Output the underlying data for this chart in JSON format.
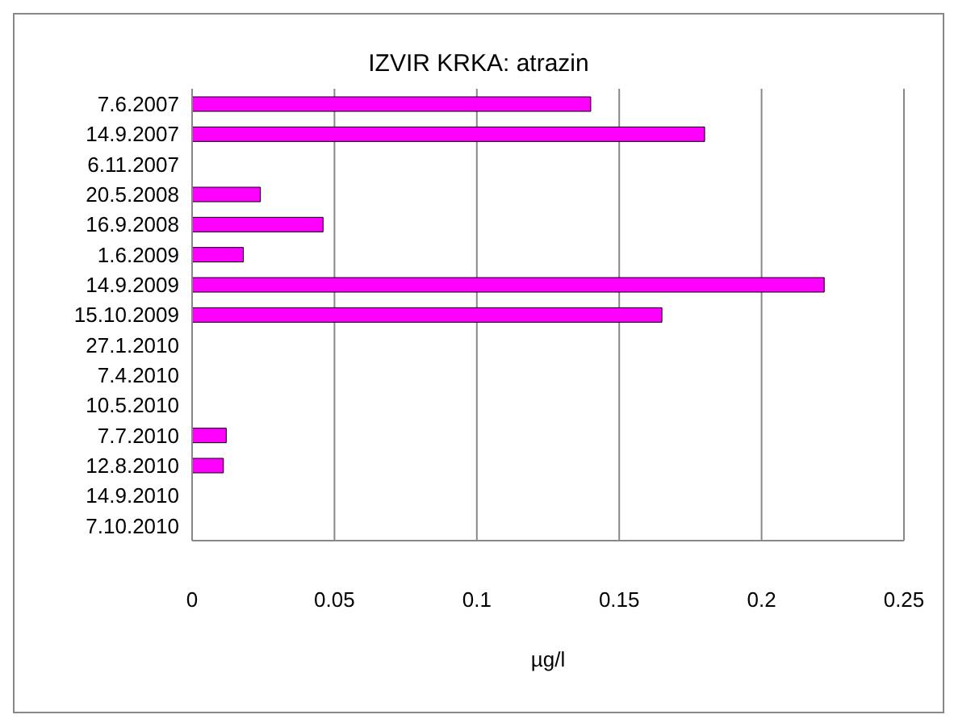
{
  "chart_data": {
    "type": "bar",
    "orientation": "horizontal",
    "title": "IZVIR KRKA: atrazin",
    "xlabel": "µg/l",
    "categories": [
      "7.6.2007",
      "14.9.2007",
      "6.11.2007",
      "20.5.2008",
      "16.9.2008",
      "1.6.2009",
      "14.9.2009",
      "15.10.2009",
      "27.1.2010",
      "7.4.2010",
      "10.5.2010",
      "7.7.2010",
      "12.8.2010",
      "14.9.2010",
      "7.10.2010"
    ],
    "values": [
      0.14,
      0.18,
      null,
      0.024,
      0.046,
      0.018,
      0.222,
      0.165,
      null,
      null,
      null,
      0.012,
      0.011,
      null,
      null
    ],
    "color": "#ff00ff",
    "xlim": [
      0,
      0.25
    ],
    "xticks": [
      0,
      0.05,
      0.1,
      0.15,
      0.2,
      0.25
    ],
    "grid": "x",
    "legend": false
  }
}
